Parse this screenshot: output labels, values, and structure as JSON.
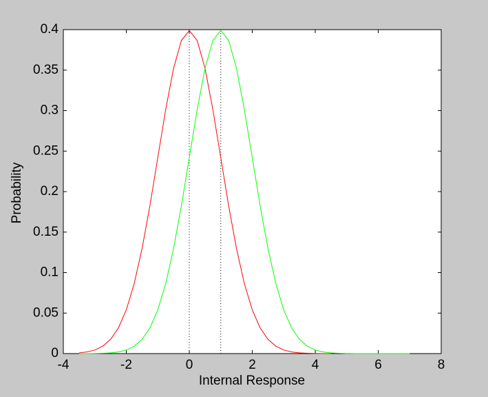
{
  "chart_data": {
    "type": "line",
    "xlabel": "Internal Response",
    "ylabel": "Probability",
    "xlim": [
      -4,
      8
    ],
    "xticks": [
      -4,
      -2,
      0,
      2,
      4,
      6,
      8
    ],
    "ylim": [
      0,
      0.4
    ],
    "yticks": [
      0,
      0.05,
      0.1,
      0.15,
      0.2,
      0.25,
      0.3,
      0.35,
      0.4
    ],
    "vlines": [
      0,
      1
    ],
    "vline_color": "#000000",
    "series": [
      {
        "color": "#ff0000",
        "x": [
          -3.5,
          -3.25,
          -3,
          -2.75,
          -2.5,
          -2.25,
          -2,
          -1.75,
          -1.5,
          -1.25,
          -1,
          -0.75,
          -0.5,
          -0.25,
          0,
          0.25,
          0.5,
          0.75,
          1,
          1.25,
          1.5,
          1.75,
          2,
          2.25,
          2.5,
          2.75,
          3,
          3.25,
          3.5,
          3.75,
          4,
          4.25,
          4.5
        ],
        "values": [
          0.0009,
          0.002,
          0.0044,
          0.0091,
          0.0175,
          0.0317,
          0.054,
          0.0863,
          0.1295,
          0.1826,
          0.242,
          0.3011,
          0.3521,
          0.3867,
          0.3989,
          0.3867,
          0.3521,
          0.3011,
          0.242,
          0.1826,
          0.1295,
          0.0863,
          0.054,
          0.0317,
          0.0175,
          0.0091,
          0.0044,
          0.002,
          0.0009,
          0.0004,
          0.0001,
          0,
          0
        ]
      },
      {
        "color": "#00ff00",
        "x": [
          -3.5,
          -3.25,
          -3,
          -2.75,
          -2.5,
          -2.25,
          -2,
          -1.75,
          -1.5,
          -1.25,
          -1,
          -0.75,
          -0.5,
          -0.25,
          0,
          0.25,
          0.5,
          0.75,
          1,
          1.25,
          1.5,
          1.75,
          2,
          2.25,
          2.5,
          2.75,
          3,
          3.25,
          3.5,
          3.75,
          4,
          4.25,
          4.5,
          4.75,
          5,
          5.25,
          5.5,
          5.75,
          6,
          6.25,
          6.5,
          6.75,
          7
        ],
        "values": [
          0,
          0,
          0.0001,
          0.0004,
          0.0009,
          0.002,
          0.0044,
          0.0091,
          0.0175,
          0.0317,
          0.054,
          0.0863,
          0.1295,
          0.1826,
          0.242,
          0.3011,
          0.3521,
          0.3867,
          0.3989,
          0.3867,
          0.3521,
          0.3011,
          0.242,
          0.1826,
          0.1295,
          0.0863,
          0.054,
          0.0317,
          0.0175,
          0.0091,
          0.0044,
          0.002,
          0.0009,
          0.0004,
          0.0001,
          0,
          0,
          0,
          0,
          0,
          0,
          0,
          0
        ]
      }
    ]
  }
}
